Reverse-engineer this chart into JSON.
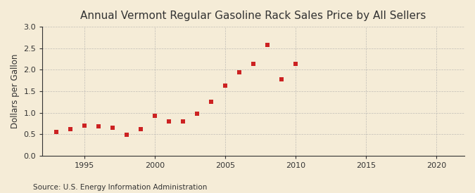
{
  "title": "Annual Vermont Regular Gasoline Rack Sales Price by All Sellers",
  "ylabel": "Dollars per Gallon",
  "source": "Source: U.S. Energy Information Administration",
  "background_color": "#f5ecd7",
  "marker_color": "#cc2222",
  "years": [
    1993,
    1994,
    1995,
    1996,
    1997,
    1998,
    1999,
    2000,
    2001,
    2002,
    2003,
    2004,
    2005,
    2006,
    2007,
    2008,
    2009,
    2010
  ],
  "values": [
    0.55,
    0.61,
    0.7,
    0.68,
    0.65,
    0.49,
    0.62,
    0.93,
    0.79,
    0.79,
    0.97,
    1.26,
    1.63,
    1.94,
    2.13,
    2.57,
    1.77,
    2.13
  ],
  "xlim": [
    1992,
    2022
  ],
  "ylim": [
    0.0,
    3.0
  ],
  "xticks": [
    1995,
    2000,
    2005,
    2010,
    2015,
    2020
  ],
  "yticks": [
    0.0,
    0.5,
    1.0,
    1.5,
    2.0,
    2.5,
    3.0
  ],
  "title_fontsize": 11,
  "label_fontsize": 8.5,
  "tick_fontsize": 8,
  "source_fontsize": 7.5,
  "grid_color": "#aaaaaa",
  "spine_color": "#333333",
  "text_color": "#333333"
}
